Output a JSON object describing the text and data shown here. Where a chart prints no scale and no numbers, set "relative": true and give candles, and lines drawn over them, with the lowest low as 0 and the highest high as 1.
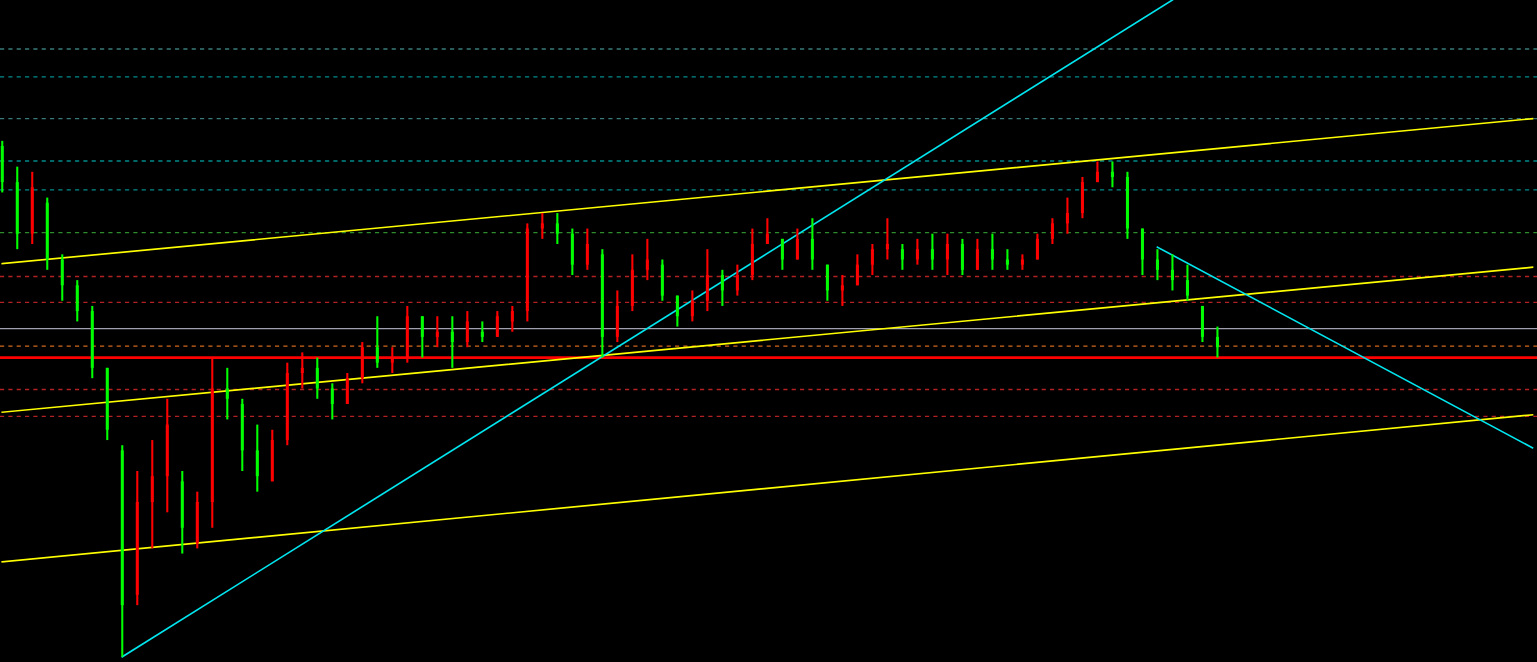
{
  "chart_data": {
    "type": "candlestick",
    "relative": true,
    "grid": false,
    "categories": [
      null,
      null,
      null,
      null,
      null,
      null,
      null,
      null,
      null,
      null,
      null,
      null,
      null,
      null,
      null,
      null,
      null,
      null,
      null,
      null,
      null,
      null,
      null,
      null,
      null,
      null,
      null,
      null,
      null,
      null,
      null,
      null,
      null,
      null,
      null,
      null,
      null,
      null,
      null,
      null,
      null,
      null,
      null,
      null,
      null,
      null,
      null,
      null,
      null,
      null,
      null,
      null,
      null,
      null,
      null,
      null,
      null,
      null,
      null,
      null,
      null,
      null,
      null,
      null,
      null,
      null,
      null,
      null,
      null,
      null,
      null,
      null,
      null,
      null,
      null,
      null,
      null,
      null,
      null,
      null,
      null,
      null,
      null,
      null,
      null,
      null,
      null,
      null,
      null,
      null,
      null,
      null,
      null,
      null,
      null,
      null,
      null,
      null,
      null,
      null,
      null,
      null,
      null
    ],
    "colors": [
      "#00ff00",
      "#00ff00",
      "#ff0000",
      "#00ff00",
      "#00ff00",
      "#00ff00",
      "#00ff00",
      "#00ff00",
      "#00ff00",
      "#ff0000",
      "#ff0000",
      "#ff0000",
      "#00ff00",
      "#ff0000",
      "#ff0000",
      "#00ff00",
      "#00ff00",
      "#00ff00",
      "#ff0000",
      "#ff0000",
      "#ff0000",
      "#00ff00",
      "#00ff00",
      "#ff0000",
      "#ff0000",
      "#00ff00",
      "#ff0000",
      "#ff0000",
      "#00ff00",
      "#ff0000",
      "#00ff00",
      "#ff0000",
      "#00ff00",
      "#ff0000",
      "#ff0000",
      "#ff0000",
      "#ff0000",
      "#00ff00",
      "#00ff00",
      "#ff0000",
      "#00ff00",
      "#ff0000",
      "#ff0000",
      "#ff0000",
      "#00ff00",
      "#00ff00",
      "#ff0000",
      "#ff0000",
      "#00ff00",
      "#ff0000",
      "#ff0000",
      "#ff0000",
      "#00ff00",
      "#ff0000",
      "#00ff00",
      "#00ff00",
      "#ff0000",
      "#ff0000",
      "#ff0000",
      "#ff0000",
      "#00ff00",
      "#ff0000",
      "#00ff00",
      "#ff0000",
      "#00ff00",
      "#ff0000",
      "#00ff00",
      "#00ff00",
      "#ff0000",
      "#ff0000",
      "#ff0000",
      "#ff0000",
      "#ff0000",
      "#ff0000",
      "#00ff00",
      "#00ff00",
      "#00ff00",
      "#00ff00",
      "#00ff00",
      "#00ff00",
      "#00ff00",
      "#00ff00",
      null,
      null,
      null,
      null,
      null,
      null,
      null,
      null,
      null,
      null,
      null,
      null,
      null,
      null,
      null,
      null,
      null,
      null,
      null,
      null,
      null
    ],
    "ohlc": [
      [
        0.99,
        1.0,
        0.9,
        0.92
      ],
      [
        0.92,
        0.95,
        0.79,
        0.82
      ],
      [
        0.82,
        0.94,
        0.8,
        0.91
      ],
      [
        0.88,
        0.89,
        0.75,
        0.77
      ],
      [
        0.77,
        0.78,
        0.69,
        0.72
      ],
      [
        0.72,
        0.73,
        0.65,
        0.67
      ],
      [
        0.67,
        0.68,
        0.54,
        0.56
      ],
      [
        0.56,
        0.56,
        0.42,
        0.44
      ],
      [
        0.4,
        0.41,
        0.0,
        0.1
      ],
      [
        0.12,
        0.36,
        0.1,
        0.3
      ],
      [
        0.3,
        0.42,
        0.21,
        0.35
      ],
      [
        0.35,
        0.5,
        0.28,
        0.45
      ],
      [
        0.34,
        0.36,
        0.2,
        0.25
      ],
      [
        0.22,
        0.32,
        0.21,
        0.3
      ],
      [
        0.3,
        0.58,
        0.25,
        0.52
      ],
      [
        0.52,
        0.56,
        0.46,
        0.5
      ],
      [
        0.49,
        0.5,
        0.36,
        0.4
      ],
      [
        0.4,
        0.45,
        0.32,
        0.35
      ],
      [
        0.34,
        0.44,
        0.34,
        0.42
      ],
      [
        0.42,
        0.57,
        0.41,
        0.55
      ],
      [
        0.55,
        0.59,
        0.52,
        0.56
      ],
      [
        0.56,
        0.58,
        0.5,
        0.52
      ],
      [
        0.52,
        0.53,
        0.46,
        0.49
      ],
      [
        0.49,
        0.55,
        0.49,
        0.54
      ],
      [
        0.54,
        0.61,
        0.53,
        0.6
      ],
      [
        0.6,
        0.66,
        0.56,
        0.57
      ],
      [
        0.57,
        0.6,
        0.55,
        0.58
      ],
      [
        0.58,
        0.68,
        0.57,
        0.66
      ],
      [
        0.66,
        0.66,
        0.58,
        0.62
      ],
      [
        0.62,
        0.66,
        0.6,
        0.63
      ],
      [
        0.63,
        0.66,
        0.56,
        0.61
      ],
      [
        0.61,
        0.67,
        0.6,
        0.65
      ],
      [
        0.63,
        0.65,
        0.61,
        0.62
      ],
      [
        0.62,
        0.67,
        0.62,
        0.66
      ],
      [
        0.65,
        0.68,
        0.63,
        0.67
      ],
      [
        0.67,
        0.84,
        0.65,
        0.83
      ],
      [
        0.83,
        0.86,
        0.81,
        0.84
      ],
      [
        0.84,
        0.86,
        0.8,
        0.82
      ],
      [
        0.82,
        0.83,
        0.74,
        0.76
      ],
      [
        0.76,
        0.83,
        0.75,
        0.8
      ],
      [
        0.78,
        0.79,
        0.58,
        0.62
      ],
      [
        0.62,
        0.71,
        0.61,
        0.68
      ],
      [
        0.68,
        0.78,
        0.67,
        0.75
      ],
      [
        0.75,
        0.81,
        0.73,
        0.77
      ],
      [
        0.76,
        0.77,
        0.69,
        0.7
      ],
      [
        0.7,
        0.7,
        0.64,
        0.66
      ],
      [
        0.66,
        0.71,
        0.65,
        0.69
      ],
      [
        0.69,
        0.79,
        0.67,
        0.74
      ],
      [
        0.74,
        0.75,
        0.68,
        0.71
      ],
      [
        0.71,
        0.76,
        0.7,
        0.74
      ],
      [
        0.74,
        0.83,
        0.73,
        0.8
      ],
      [
        0.8,
        0.85,
        0.8,
        0.82
      ],
      [
        0.81,
        0.81,
        0.75,
        0.77
      ],
      [
        0.77,
        0.83,
        0.77,
        0.81
      ],
      [
        0.81,
        0.85,
        0.75,
        0.77
      ],
      [
        0.76,
        0.76,
        0.69,
        0.71
      ],
      [
        0.71,
        0.74,
        0.68,
        0.72
      ],
      [
        0.72,
        0.78,
        0.72,
        0.76
      ],
      [
        0.76,
        0.8,
        0.74,
        0.79
      ],
      [
        0.79,
        0.85,
        0.77,
        0.8
      ],
      [
        0.79,
        0.8,
        0.75,
        0.77
      ],
      [
        0.77,
        0.81,
        0.76,
        0.79
      ],
      [
        0.79,
        0.82,
        0.75,
        0.77
      ],
      [
        0.77,
        0.82,
        0.74,
        0.8
      ],
      [
        0.8,
        0.81,
        0.74,
        0.75
      ],
      [
        0.75,
        0.81,
        0.75,
        0.79
      ],
      [
        0.79,
        0.82,
        0.75,
        0.77
      ],
      [
        0.77,
        0.79,
        0.75,
        0.76
      ],
      [
        0.76,
        0.78,
        0.75,
        0.77
      ],
      [
        0.77,
        0.82,
        0.77,
        0.81
      ],
      [
        0.81,
        0.85,
        0.8,
        0.84
      ],
      [
        0.84,
        0.89,
        0.82,
        0.86
      ],
      [
        0.86,
        0.93,
        0.85,
        0.92
      ],
      [
        0.92,
        0.96,
        0.92,
        0.94
      ],
      [
        0.94,
        0.96,
        0.91,
        0.93
      ],
      [
        0.93,
        0.94,
        0.81,
        0.83
      ],
      [
        0.83,
        0.83,
        0.74,
        0.77
      ],
      [
        0.77,
        0.79,
        0.73,
        0.75
      ],
      [
        0.75,
        0.78,
        0.71,
        0.73
      ],
      [
        0.73,
        0.76,
        0.69,
        0.7
      ],
      [
        0.68,
        0.68,
        0.61,
        0.62
      ],
      [
        0.62,
        0.64,
        0.58,
        0.6
      ],
      null,
      null,
      null,
      null,
      null,
      null,
      null,
      null,
      null,
      null,
      null,
      null,
      null,
      null,
      null,
      null,
      null,
      null,
      null,
      null,
      null
    ],
    "series": [
      {
        "type": "line",
        "color": "#ffff00",
        "values": [
          0.762,
          null,
          null,
          null,
          null,
          null,
          null,
          null,
          null,
          null,
          null,
          null,
          null,
          null,
          null,
          null,
          null,
          null,
          null,
          null,
          null,
          null,
          null,
          null,
          null,
          null,
          null,
          null,
          null,
          null,
          null,
          null,
          null,
          null,
          null,
          null,
          null,
          null,
          null,
          null,
          null,
          null,
          null,
          null,
          null,
          null,
          null,
          null,
          null,
          null,
          null,
          null,
          null,
          null,
          null,
          null,
          null,
          null,
          null,
          null,
          null,
          null,
          null,
          null,
          null,
          null,
          null,
          null,
          null,
          null,
          null,
          null,
          null,
          null,
          null,
          null,
          null,
          null,
          null,
          null,
          null,
          null,
          null,
          null,
          null,
          null,
          null,
          null,
          null,
          null,
          null,
          null,
          null,
          null,
          null,
          null,
          null,
          null,
          null,
          null,
          null,
          null,
          1.043
        ]
      },
      {
        "type": "line",
        "color": "#ffff00",
        "values": [
          0.474,
          null,
          null,
          null,
          null,
          null,
          null,
          null,
          null,
          null,
          null,
          null,
          null,
          null,
          null,
          null,
          null,
          null,
          null,
          null,
          null,
          null,
          null,
          null,
          null,
          null,
          null,
          null,
          null,
          null,
          null,
          null,
          null,
          null,
          null,
          null,
          null,
          null,
          null,
          null,
          null,
          null,
          null,
          null,
          null,
          null,
          null,
          null,
          null,
          null,
          null,
          null,
          null,
          null,
          null,
          null,
          null,
          null,
          null,
          null,
          null,
          null,
          null,
          null,
          null,
          null,
          null,
          null,
          null,
          null,
          null,
          null,
          null,
          null,
          null,
          null,
          null,
          null,
          null,
          null,
          null,
          null,
          null,
          null,
          null,
          null,
          null,
          null,
          null,
          null,
          null,
          null,
          null,
          null,
          null,
          null,
          null,
          null,
          null,
          null,
          null,
          null,
          0.755
        ]
      },
      {
        "type": "line",
        "color": "#ffff00",
        "values": [
          0.184,
          null,
          null,
          null,
          null,
          null,
          null,
          null,
          null,
          null,
          null,
          null,
          null,
          null,
          null,
          null,
          null,
          null,
          null,
          null,
          null,
          null,
          null,
          null,
          null,
          null,
          null,
          null,
          null,
          null,
          null,
          null,
          null,
          null,
          null,
          null,
          null,
          null,
          null,
          null,
          null,
          null,
          null,
          null,
          null,
          null,
          null,
          null,
          null,
          null,
          null,
          null,
          null,
          null,
          null,
          null,
          null,
          null,
          null,
          null,
          null,
          null,
          null,
          null,
          null,
          null,
          null,
          null,
          null,
          null,
          null,
          null,
          null,
          null,
          null,
          null,
          null,
          null,
          null,
          null,
          null,
          null,
          null,
          null,
          null,
          null,
          null,
          null,
          null,
          null,
          null,
          null,
          null,
          null,
          null,
          null,
          null,
          null,
          null,
          null,
          null,
          null,
          0.469
        ]
      },
      {
        "type": "line",
        "color": "#00e5ee",
        "values": [
          null,
          null,
          null,
          null,
          null,
          null,
          null,
          null,
          0.0,
          null,
          null,
          null,
          null,
          null,
          null,
          null,
          null,
          null,
          null,
          null,
          null,
          null,
          null,
          null,
          null,
          null,
          null,
          null,
          null,
          null,
          null,
          null,
          null,
          null,
          null,
          null,
          null,
          null,
          null,
          null,
          null,
          null,
          null,
          null,
          null,
          null,
          null,
          null,
          null,
          null,
          null,
          null,
          null,
          null,
          null,
          null,
          null,
          null,
          null,
          null,
          null,
          null,
          null,
          null,
          null,
          null,
          null,
          null,
          null,
          null,
          null,
          null,
          null,
          null,
          null,
          null,
          null,
          null,
          1.273,
          null,
          null,
          null,
          null,
          null,
          null,
          null,
          null,
          null,
          null,
          null,
          null,
          null,
          null,
          null,
          null,
          null,
          null,
          null,
          null,
          null,
          null,
          null,
          null
        ]
      },
      {
        "type": "line",
        "color": "#00e5ee",
        "values": [
          null,
          null,
          null,
          null,
          null,
          null,
          null,
          null,
          null,
          null,
          null,
          null,
          null,
          null,
          null,
          null,
          null,
          null,
          null,
          null,
          null,
          null,
          null,
          null,
          null,
          null,
          null,
          null,
          null,
          null,
          null,
          null,
          null,
          null,
          null,
          null,
          null,
          null,
          null,
          null,
          null,
          null,
          null,
          null,
          null,
          null,
          null,
          null,
          null,
          null,
          null,
          null,
          null,
          null,
          null,
          null,
          null,
          null,
          null,
          null,
          null,
          null,
          null,
          null,
          null,
          null,
          null,
          null,
          null,
          null,
          null,
          null,
          null,
          null,
          null,
          null,
          null,
          0.794,
          null,
          null,
          null,
          null,
          null,
          null,
          null,
          null,
          null,
          null,
          null,
          null,
          null,
          null,
          null,
          null,
          null,
          null,
          null,
          null,
          null,
          null,
          null,
          null,
          0.405
        ]
      }
    ],
    "ref_lines": [
      {
        "axis": "y",
        "value": 1.178,
        "color": "#3a7a7a",
        "line_style": "dashed"
      },
      {
        "axis": "y",
        "value": 1.124,
        "color": "#008b8b",
        "line_style": "dashed"
      },
      {
        "axis": "y",
        "value": 1.043,
        "color": "#3a7a7a",
        "line_style": "dashed"
      },
      {
        "axis": "y",
        "value": 0.961,
        "color": "#008b8b",
        "line_style": "dashed"
      },
      {
        "axis": "y",
        "value": 0.905,
        "color": "#008b8b",
        "line_style": "dashed"
      },
      {
        "axis": "y",
        "value": 0.822,
        "color": "#2e8b2e",
        "line_style": "dashed"
      },
      {
        "axis": "y",
        "value": 0.737,
        "color": "#b22222",
        "line_style": "dashed"
      },
      {
        "axis": "y",
        "value": 0.687,
        "color": "#b22222",
        "line_style": "dashed"
      },
      {
        "axis": "y",
        "value": 0.636,
        "color": "#a0a0b0",
        "line_style": "solid"
      },
      {
        "axis": "y",
        "value": 0.602,
        "color": "#d2691e",
        "line_style": "dashed"
      },
      {
        "axis": "y",
        "value": 0.58,
        "color": "#ff0000",
        "line_style": "solid"
      },
      {
        "axis": "y",
        "value": 0.518,
        "color": "#b22222",
        "line_style": "dashed"
      },
      {
        "axis": "y",
        "value": 0.466,
        "color": "#b22222",
        "line_style": "dashed"
      }
    ]
  }
}
